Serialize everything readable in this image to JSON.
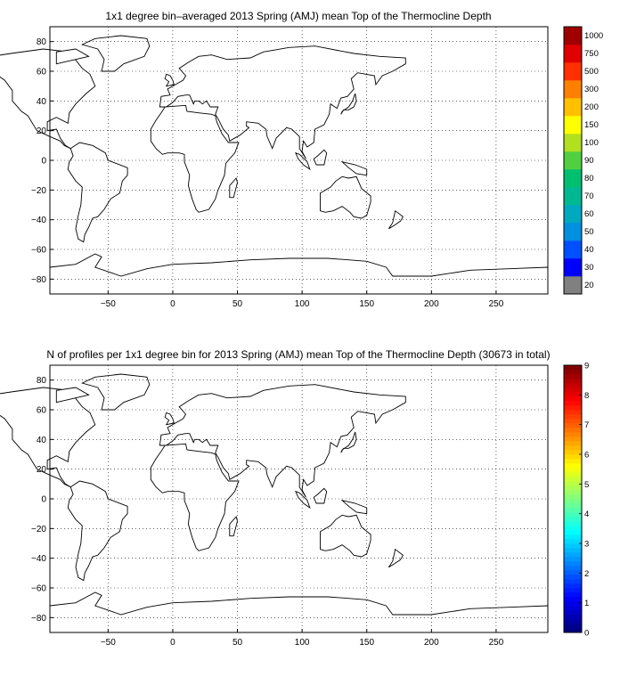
{
  "chart_data": [
    {
      "type": "heatmap",
      "title": "1x1 degree bin–averaged 2013 Spring (AMJ) mean Top of the Thermocline Depth",
      "xlabel": "",
      "ylabel": "",
      "xlim": [
        -95,
        290
      ],
      "ylim": [
        -90,
        90
      ],
      "xticks": [
        -50,
        0,
        50,
        100,
        150,
        200,
        250
      ],
      "yticks": [
        80,
        60,
        40,
        20,
        0,
        -20,
        -40,
        -60,
        -80
      ],
      "grid": true,
      "colorbar": {
        "scale": "categorical",
        "labels": [
          "20",
          "30",
          "40",
          "50",
          "60",
          "70",
          "80",
          "90",
          "100",
          "150",
          "200",
          "300",
          "500",
          "750",
          "1000"
        ],
        "colors": [
          "#808080",
          "#0000ff",
          "#0050ff",
          "#0090e0",
          "#00a8c0",
          "#00b890",
          "#00c070",
          "#50d040",
          "#b0e020",
          "#ffff00",
          "#ffc000",
          "#ff8000",
          "#ff3000",
          "#e00000",
          "#a00000"
        ]
      }
    },
    {
      "type": "heatmap",
      "title": "N of profiles per 1x1 degree bin for 2013 Spring (AMJ) mean Top of the Thermocline Depth  (30673 in total)",
      "xlabel": "",
      "ylabel": "",
      "xlim": [
        -95,
        290
      ],
      "ylim": [
        -90,
        90
      ],
      "xticks": [
        -50,
        0,
        50,
        100,
        150,
        200,
        250
      ],
      "yticks": [
        80,
        60,
        40,
        20,
        0,
        -20,
        -40,
        -60,
        -80
      ],
      "grid": true,
      "colorbar": {
        "scale": "linear",
        "range": [
          0,
          9
        ],
        "ticks": [
          "0",
          "1",
          "2",
          "3",
          "4",
          "5",
          "6",
          "7",
          "8",
          "9"
        ]
      }
    }
  ]
}
